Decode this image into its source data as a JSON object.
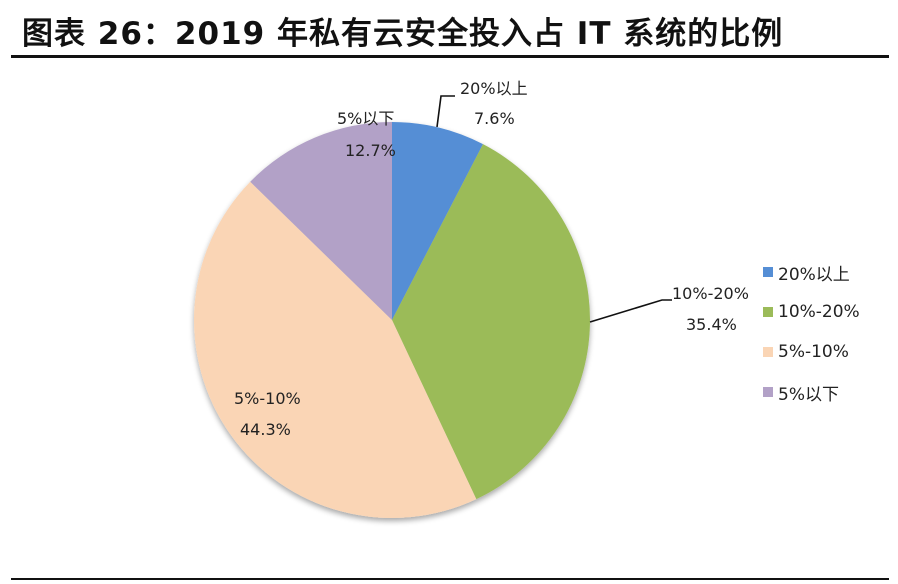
{
  "title": "图表 26：2019 年私有云安全投入占 IT 系统的比例",
  "chart_data": {
    "type": "pie",
    "title": "2019 年私有云安全投入占 IT 系统的比例",
    "categories": [
      "20%以上",
      "10%-20%",
      "5%-10%",
      "5%以下"
    ],
    "values": [
      7.6,
      35.4,
      44.3,
      12.7
    ],
    "unit": "%",
    "colors": [
      "#558ED5",
      "#9BBB59",
      "#FAD5B5",
      "#B2A1C7"
    ],
    "start_angle_deg": 0,
    "direction": "clockwise",
    "legend_position": "right",
    "data_labels": [
      {
        "name": "20%以上",
        "value": "7.6%"
      },
      {
        "name": "10%-20%",
        "value": "35.4%"
      },
      {
        "name": "5%-10%",
        "value": "44.3%"
      },
      {
        "name": "5%以下",
        "value": "12.7%"
      }
    ]
  },
  "legend": [
    {
      "label": "20%以上",
      "color": "#558ED5"
    },
    {
      "label": "10%-20%",
      "color": "#9BBB59"
    },
    {
      "label": "5%-10%",
      "color": "#FAD5B5"
    },
    {
      "label": "5%以下",
      "color": "#B2A1C7"
    }
  ]
}
